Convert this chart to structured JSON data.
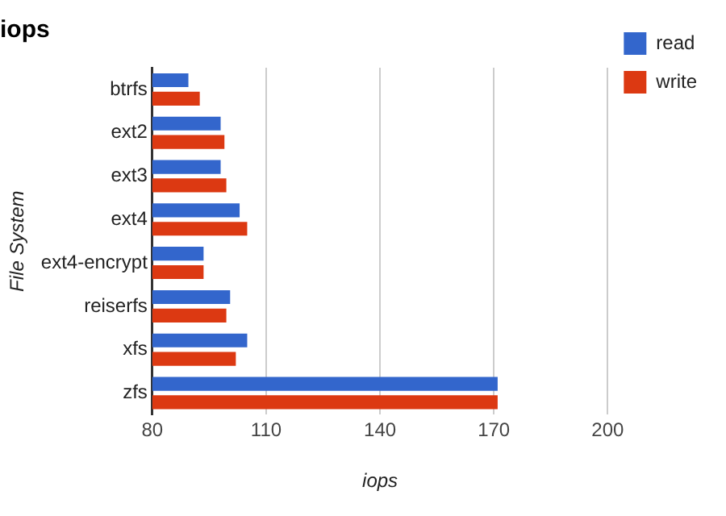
{
  "chart_data": {
    "type": "bar",
    "orientation": "horizontal",
    "title": "iops",
    "xlabel": "iops",
    "ylabel": "File System",
    "categories": [
      "btrfs",
      "ext2",
      "ext3",
      "ext4",
      "ext4-encrypt",
      "reiserfs",
      "xfs",
      "zfs"
    ],
    "series": [
      {
        "name": "read",
        "color": "#3366cc",
        "values": [
          89.5,
          98,
          98,
          103,
          93.5,
          100.5,
          105,
          171
        ]
      },
      {
        "name": "write",
        "color": "#dc3912",
        "values": [
          92.5,
          99,
          99.5,
          105,
          93.5,
          99.5,
          102,
          171
        ]
      }
    ],
    "xlim": [
      80,
      200
    ],
    "xticks": [
      80,
      110,
      140,
      170,
      200
    ],
    "grid": "x",
    "legend": "top right"
  }
}
